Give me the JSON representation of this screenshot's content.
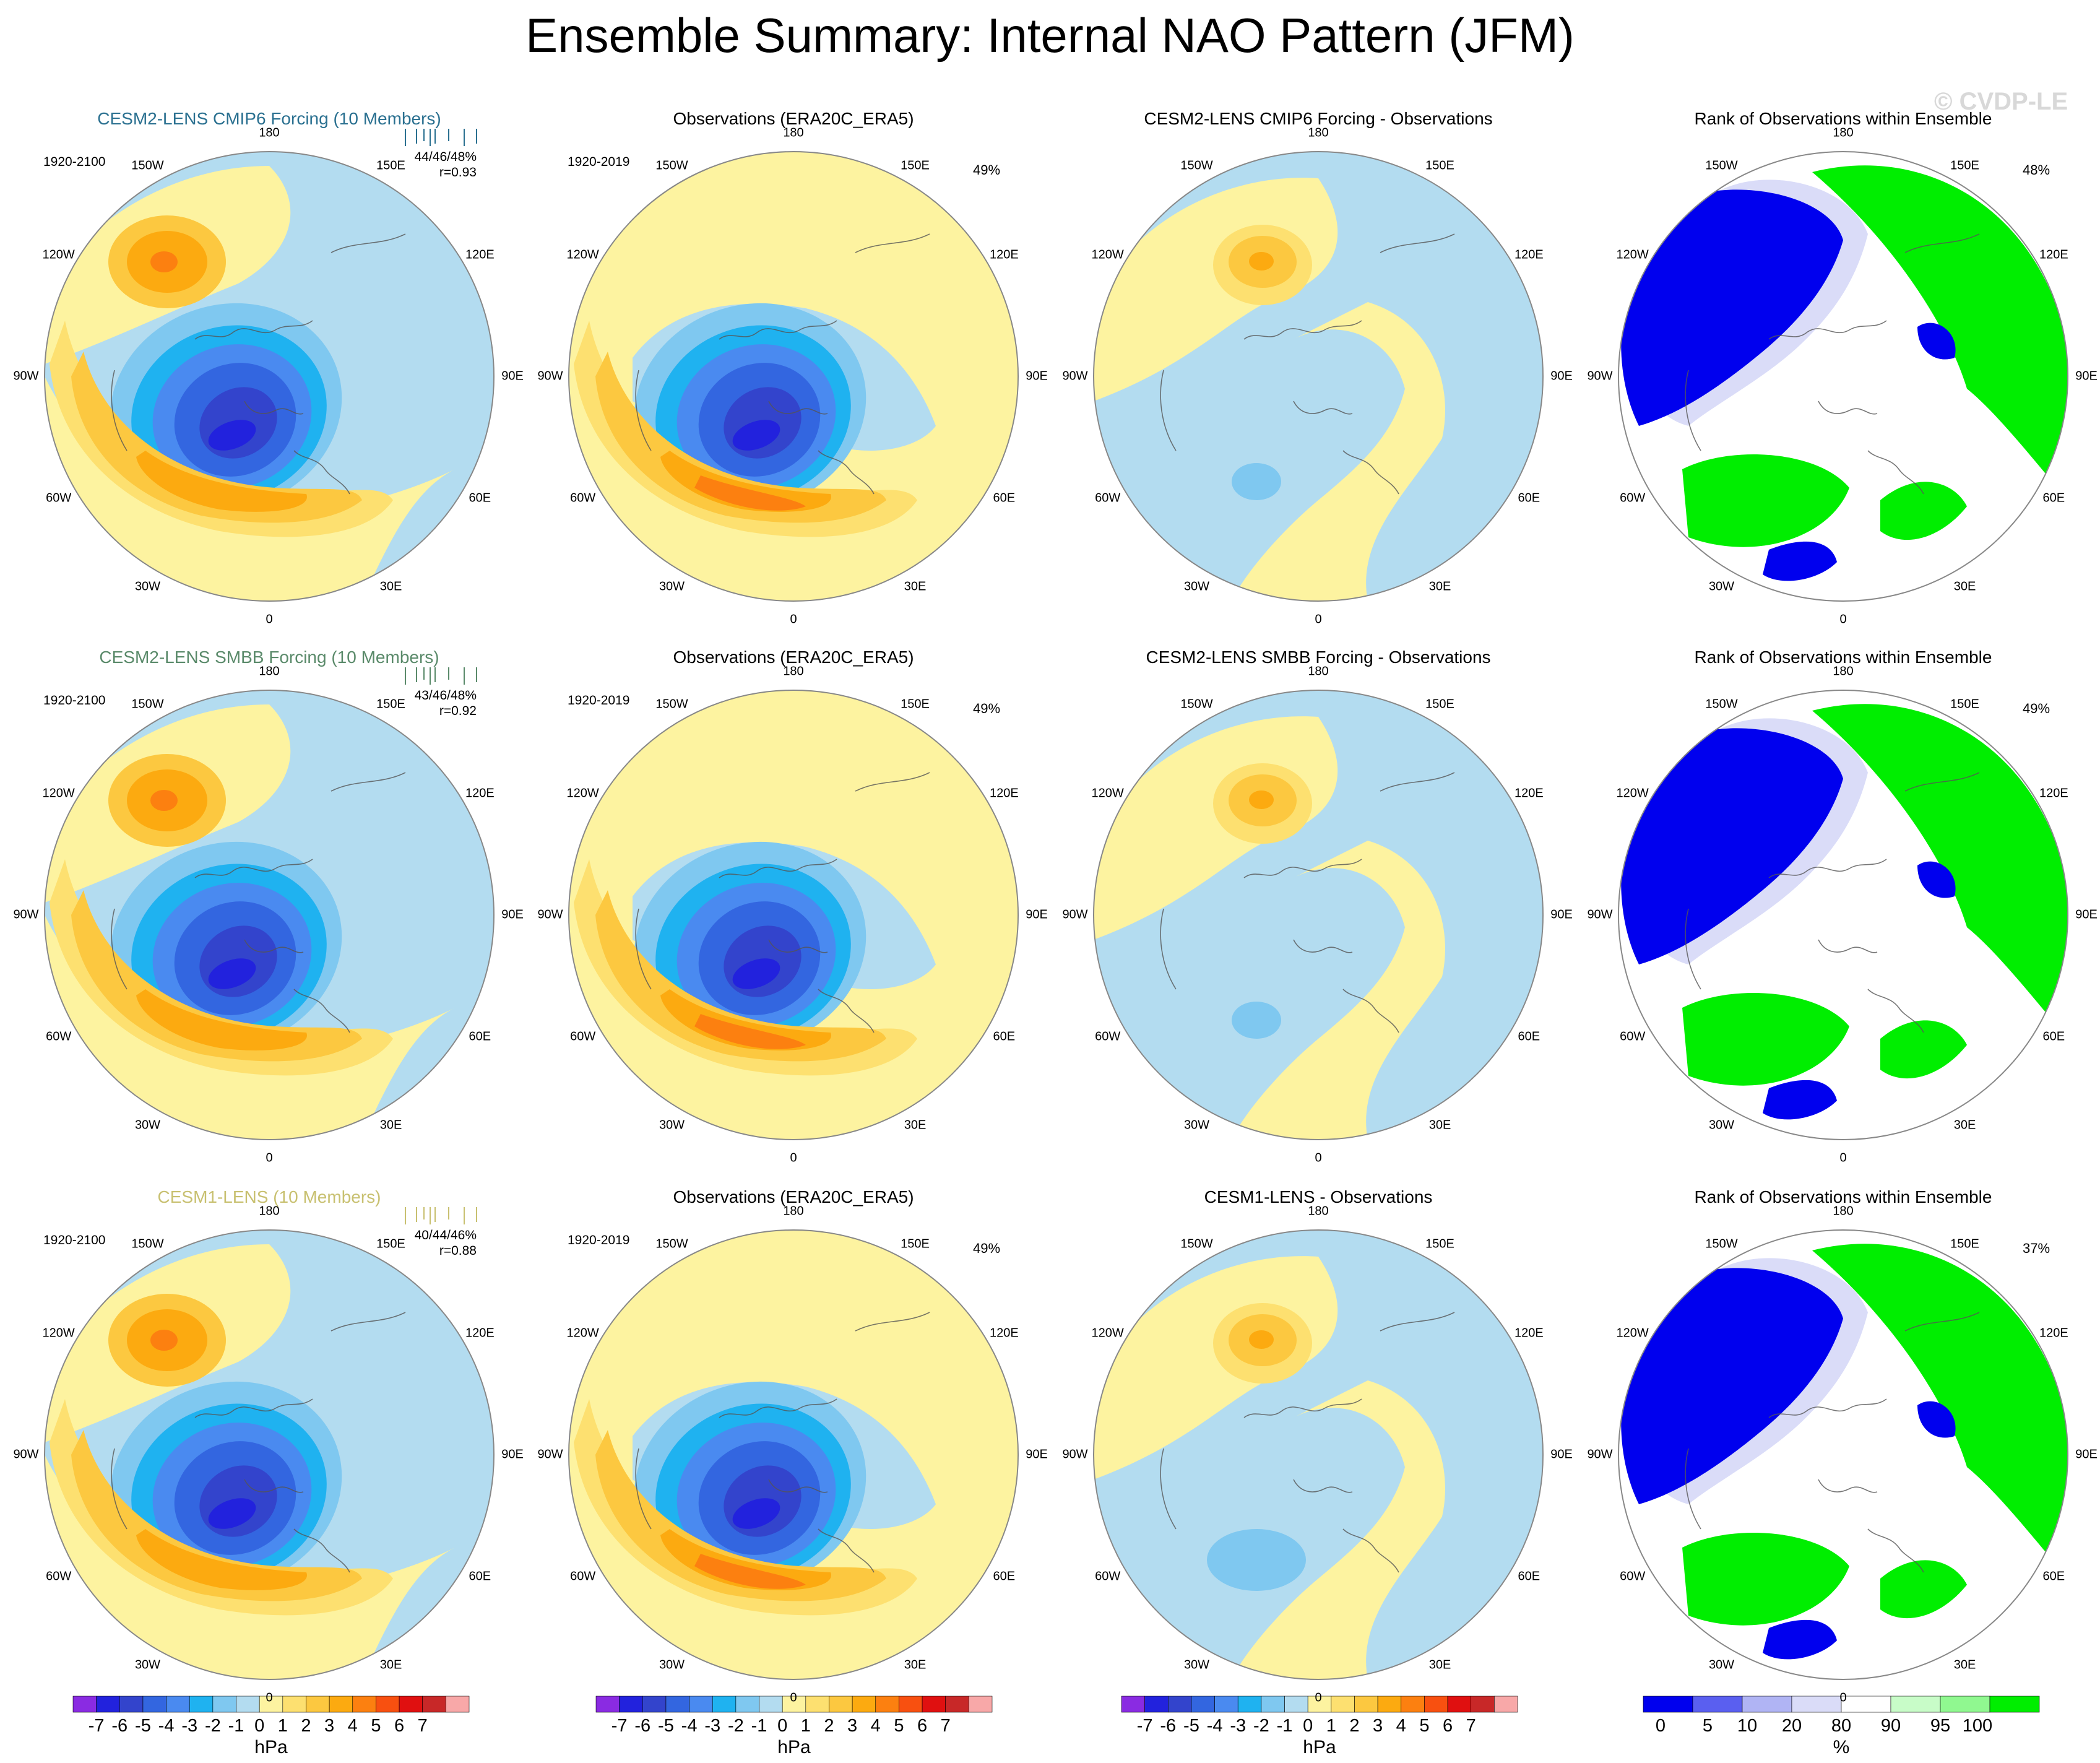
{
  "title": "Ensemble Summary: Internal NAO Pattern (JFM)",
  "watermark": "© CVDP-LE",
  "colors": {
    "neg7": "#8a2be2",
    "neg6": "#2222dd",
    "neg5": "#3344cc",
    "neg4": "#3366e0",
    "neg3": "#4a8af0",
    "neg2": "#1fb2f0",
    "neg1": "#7fc8f0",
    "neg0": "#b3dcf0",
    "pos0": "#fdf3a0",
    "pos1": "#fde070",
    "pos2": "#fcc840",
    "pos3": "#fcaa10",
    "pos4": "#fc8010",
    "pos5": "#f85010",
    "pos6": "#e01010",
    "pos7": "#c82828",
    "over": "#f8a8a8",
    "rank_blue": "#0000ee",
    "rank_lavender": "#dadcf8",
    "rank_lightgreen": "#c8fcc8",
    "rank_green": "#00ee00",
    "title_row1": "#2a7090",
    "title_row2": "#5a8a6a",
    "title_row3": "#c8c070"
  },
  "meridian_labels": [
    "180",
    "150E",
    "120E",
    "90E",
    "60E",
    "30E",
    "0",
    "30W",
    "60W",
    "90W",
    "120W",
    "150W"
  ],
  "rows": [
    {
      "model_title": "CESM2-LENS CMIP6 Forcing (10 Members)",
      "model_period": "1920-2100",
      "model_stats_a": "44/46/48%",
      "model_stats_b": "r=0.93",
      "obs_title": "Observations (ERA20C_ERA5)",
      "obs_period": "1920-2019",
      "obs_pct": "49%",
      "diff_title": "CESM2-LENS CMIP6 Forcing - Observations",
      "rank_title": "Rank of Observations within Ensemble",
      "rank_pct": "48%"
    },
    {
      "model_title": "CESM2-LENS SMBB Forcing (10 Members)",
      "model_period": "1920-2100",
      "model_stats_a": "43/46/48%",
      "model_stats_b": "r=0.92",
      "obs_title": "Observations (ERA20C_ERA5)",
      "obs_period": "1920-2019",
      "obs_pct": "49%",
      "diff_title": "CESM2-LENS SMBB Forcing - Observations",
      "rank_title": "Rank of Observations within Ensemble",
      "rank_pct": "49%"
    },
    {
      "model_title": "CESM1-LENS (10 Members)",
      "model_period": "1920-2100",
      "model_stats_a": "40/44/46%",
      "model_stats_b": "r=0.88",
      "obs_title": "Observations (ERA20C_ERA5)",
      "obs_period": "1920-2019",
      "obs_pct": "49%",
      "diff_title": "CESM1-LENS - Observations",
      "rank_title": "Rank of Observations within Ensemble",
      "rank_pct": "37%"
    }
  ],
  "colorbar_hpa": {
    "ticks": [
      "-7",
      "-6",
      "-5",
      "-4",
      "-3",
      "-2",
      "-1",
      "0",
      "1",
      "2",
      "3",
      "4",
      "5",
      "6",
      "7"
    ],
    "unit": "hPa"
  },
  "colorbar_rank": {
    "ticks": [
      "0",
      "5",
      "10",
      "20",
      "80",
      "90",
      "95",
      "100"
    ],
    "unit": "%"
  },
  "chart_data": {
    "type": "heatmap",
    "title": "Ensemble Summary: Internal NAO Pattern (JFM)",
    "projection": "north polar stereographic",
    "panels_per_row": [
      "model ensemble mean pattern",
      "observed pattern",
      "model - observations",
      "rank of observations within ensemble"
    ],
    "contour_levels_hpa": [
      -7,
      -6,
      -5,
      -4,
      -3,
      -2,
      -1,
      0,
      1,
      2,
      3,
      4,
      5,
      6,
      7
    ],
    "rank_levels_percent": [
      0,
      5,
      10,
      20,
      80,
      90,
      95,
      100
    ],
    "rows": [
      {
        "model": "CESM2-LENS CMIP6 Forcing (10 Members)",
        "variance_explained": "44/46/48%",
        "pattern_correlation": 0.93,
        "obs_variance_explained": "49%",
        "rank_pct": "48%"
      },
      {
        "model": "CESM2-LENS SMBB Forcing (10 Members)",
        "variance_explained": "43/46/48%",
        "pattern_correlation": 0.92,
        "obs_variance_explained": "49%",
        "rank_pct": "49%"
      },
      {
        "model": "CESM1-LENS (10 Members)",
        "variance_explained": "40/44/46%",
        "pattern_correlation": 0.88,
        "obs_variance_explained": "49%",
        "rank_pct": "37%"
      }
    ]
  }
}
